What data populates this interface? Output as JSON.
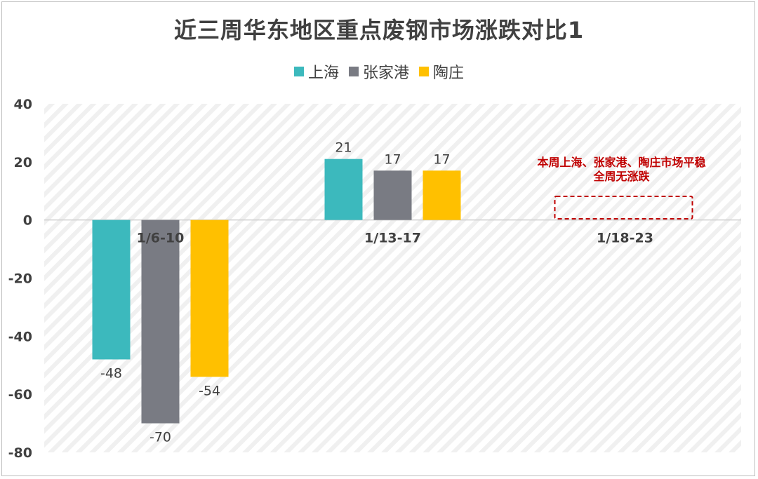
{
  "chart_data": {
    "type": "bar",
    "title": "近三周华东地区重点废钢市场涨跌对比1",
    "categories": [
      "1/6-10",
      "1/13-17",
      "1/18-23"
    ],
    "series": [
      {
        "name": "上海",
        "values": [
          -48,
          21,
          null
        ],
        "color": "#3cb9bd"
      },
      {
        "name": "张家港",
        "values": [
          -70,
          17,
          null
        ],
        "color": "#797b83"
      },
      {
        "name": "陶庄",
        "values": [
          -54,
          17,
          null
        ],
        "color": "#ffc000"
      }
    ],
    "ylim": [
      -80,
      40
    ],
    "yticks": [
      "40",
      "20",
      "0",
      "-20",
      "-40",
      "-60",
      "-80"
    ],
    "xlabel": "",
    "ylabel": "",
    "legend_position": "top",
    "grid": false,
    "annotation": {
      "lines": [
        "本周上海、张家港、陶庄市场平稳",
        "全周无涨跌"
      ],
      "color": "#c00000"
    }
  }
}
